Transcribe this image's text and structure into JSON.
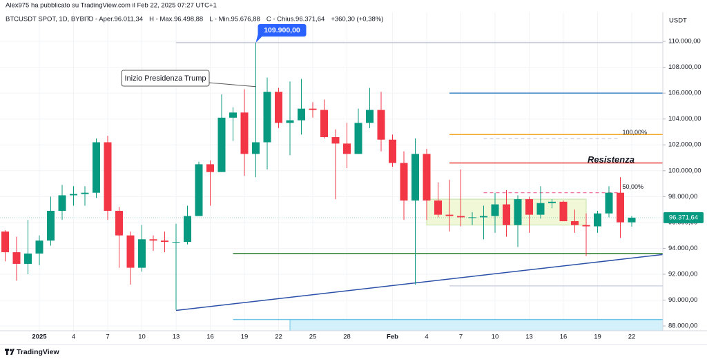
{
  "header": {
    "publisher": "Alex975 ha pubblicato su TradingView.com il Feb 22, 2025 07:27 UTC+1"
  },
  "chart_data": {
    "type": "candlestick",
    "symbol": "BTCUSDT SPOT, 1D, BYBIT",
    "legend": [
      "O - Aper.96.011,34",
      "H - Max.96.498,88",
      "L - Min.95.676,88",
      "C - Chius.96.371,64",
      "+360,30 (+0,38%)"
    ],
    "y_unit": "USDT",
    "categories": [
      null,
      null,
      null,
      "2025",
      null,
      null,
      "4",
      null,
      null,
      "7",
      null,
      null,
      "10",
      null,
      null,
      "13",
      null,
      null,
      "16",
      null,
      null,
      "19",
      null,
      null,
      "22",
      null,
      null,
      "25",
      null,
      null,
      "28",
      null,
      null,
      null,
      "Feb",
      null,
      null,
      "4",
      null,
      null,
      "7",
      null,
      null,
      "10",
      null,
      null,
      "13",
      null,
      null,
      "16",
      null,
      null,
      "19",
      null,
      null,
      "22"
    ],
    "open": [
      95300,
      93700,
      92800,
      93600,
      94600,
      96900,
      98100,
      98200,
      98300,
      102200,
      96900,
      95000,
      92500,
      94700,
      94600,
      94500,
      94500,
      96500,
      100500,
      99900,
      104100,
      104500,
      101300,
      102200,
      106100,
      103700,
      103900,
      104800,
      104700,
      102600,
      102100,
      101300,
      103700,
      104700,
      102400,
      100600,
      97700,
      101300,
      97700,
      96600,
      96500,
      96400,
      96400,
      96500,
      97400,
      95800,
      97800,
      96600,
      97500,
      97600,
      96100,
      95800,
      95700,
      96700,
      98300,
      96011.34
    ],
    "high": [
      95400,
      94900,
      96200,
      95000,
      98000,
      98900,
      98800,
      98800,
      102500,
      102700,
      97200,
      95300,
      95800,
      95000,
      95300,
      95900,
      97300,
      100700,
      100800,
      105900,
      104900,
      106300,
      109900,
      107200,
      106400,
      106900,
      107100,
      105300,
      105500,
      103200,
      103700,
      104800,
      106400,
      106100,
      102800,
      101500,
      102500,
      101700,
      99100,
      99300,
      100100,
      96800,
      97300,
      98300,
      98500,
      98100,
      98000,
      98800,
      97800,
      97700,
      97000,
      96700,
      96900,
      98800,
      99500,
      96498.88
    ],
    "low": [
      93000,
      91500,
      92000,
      92700,
      94200,
      96200,
      97300,
      97300,
      97900,
      96200,
      92500,
      91200,
      92200,
      93800,
      93700,
      89250,
      94300,
      96500,
      97300,
      99900,
      102300,
      99600,
      99500,
      100100,
      103300,
      101200,
      102800,
      104100,
      102500,
      97800,
      100200,
      101300,
      103300,
      101500,
      100300,
      96200,
      91200,
      96200,
      96400,
      95300,
      95700,
      95800,
      94700,
      95200,
      94900,
      94100,
      95200,
      96300,
      97100,
      96100,
      95200,
      93400,
      95200,
      96400,
      94800,
      95676.88
    ],
    "close": [
      93700,
      92800,
      93600,
      94600,
      96900,
      98100,
      98200,
      98300,
      102200,
      96900,
      95000,
      92500,
      94700,
      94600,
      94500,
      94500,
      96500,
      100500,
      99900,
      104100,
      104500,
      101300,
      102200,
      106100,
      103700,
      103900,
      104800,
      104700,
      102600,
      102100,
      101300,
      103700,
      104700,
      102400,
      100600,
      97700,
      101300,
      97700,
      96600,
      96500,
      96400,
      96400,
      96500,
      97400,
      95800,
      97800,
      96600,
      97500,
      97600,
      96100,
      95800,
      95700,
      96700,
      98300,
      96011.34,
      96371.64
    ],
    "up_color": "#089981",
    "down_color": "#f23645",
    "ylim": [
      87630,
      112240
    ],
    "yticks": [
      {
        "value": 88000,
        "label": "88.000,00"
      },
      {
        "value": 90000,
        "label": "90.000,00"
      },
      {
        "value": 92000,
        "label": "92.000,00"
      },
      {
        "value": 94000,
        "label": "94.000,00"
      },
      {
        "value": 96000,
        "label": "96.000,00"
      },
      {
        "value": 98000,
        "label": "98.000,00"
      },
      {
        "value": 100000,
        "label": "100.000,00"
      },
      {
        "value": 102000,
        "label": "102.000,00"
      },
      {
        "value": 104000,
        "label": "104.000,00"
      },
      {
        "value": 106000,
        "label": "106.000,00"
      },
      {
        "value": 108000,
        "label": "108.000,00"
      },
      {
        "value": 110000,
        "label": "110.000,00"
      }
    ],
    "grid": true,
    "last_price_label": "96.371,64",
    "high_callout": {
      "index": 22,
      "label": "109.900,00"
    },
    "note": {
      "index": 22,
      "price": 106500,
      "text": "Inizio Presidenza Trump"
    },
    "levels": [
      {
        "from": 15,
        "price": 109900,
        "color": "#c3c6d4"
      },
      {
        "from": 39,
        "price": 106000,
        "color": "#3d85c6"
      },
      {
        "from": 39,
        "price": 102800,
        "color": "#f5a623"
      },
      {
        "from": 39,
        "price": 100600,
        "color": "#e53935",
        "label": "Resistenza"
      },
      {
        "from": 20,
        "price": 93600,
        "color": "#2e7d32"
      },
      {
        "from": 39,
        "price": 91100,
        "color": "#cfd3e0"
      },
      {
        "from": 20,
        "price": 88500,
        "color": "#6cc3e6"
      }
    ],
    "fib": [
      {
        "from": 42,
        "to": 54,
        "price": 102500,
        "color": "#c9ccd6",
        "label": "100,00%"
      },
      {
        "from": 42,
        "to": 54,
        "price": 98300,
        "color": "#f06292",
        "label": "50,00%"
      }
    ],
    "zones": [
      {
        "from": 37,
        "to": 51,
        "top": 97800,
        "bottom": 95800,
        "color": "#f0f8d8",
        "border": "#c5e1a5"
      },
      {
        "from": 25,
        "to": 58,
        "top": 88500,
        "bottom": 87630,
        "color": "#d4f0fb",
        "border": "#6cc3e6"
      }
    ],
    "trendline": {
      "from": 15,
      "to": 58,
      "start": 89200,
      "end": 93550,
      "color": "#2a4fa8"
    },
    "brand": "TradingView"
  }
}
